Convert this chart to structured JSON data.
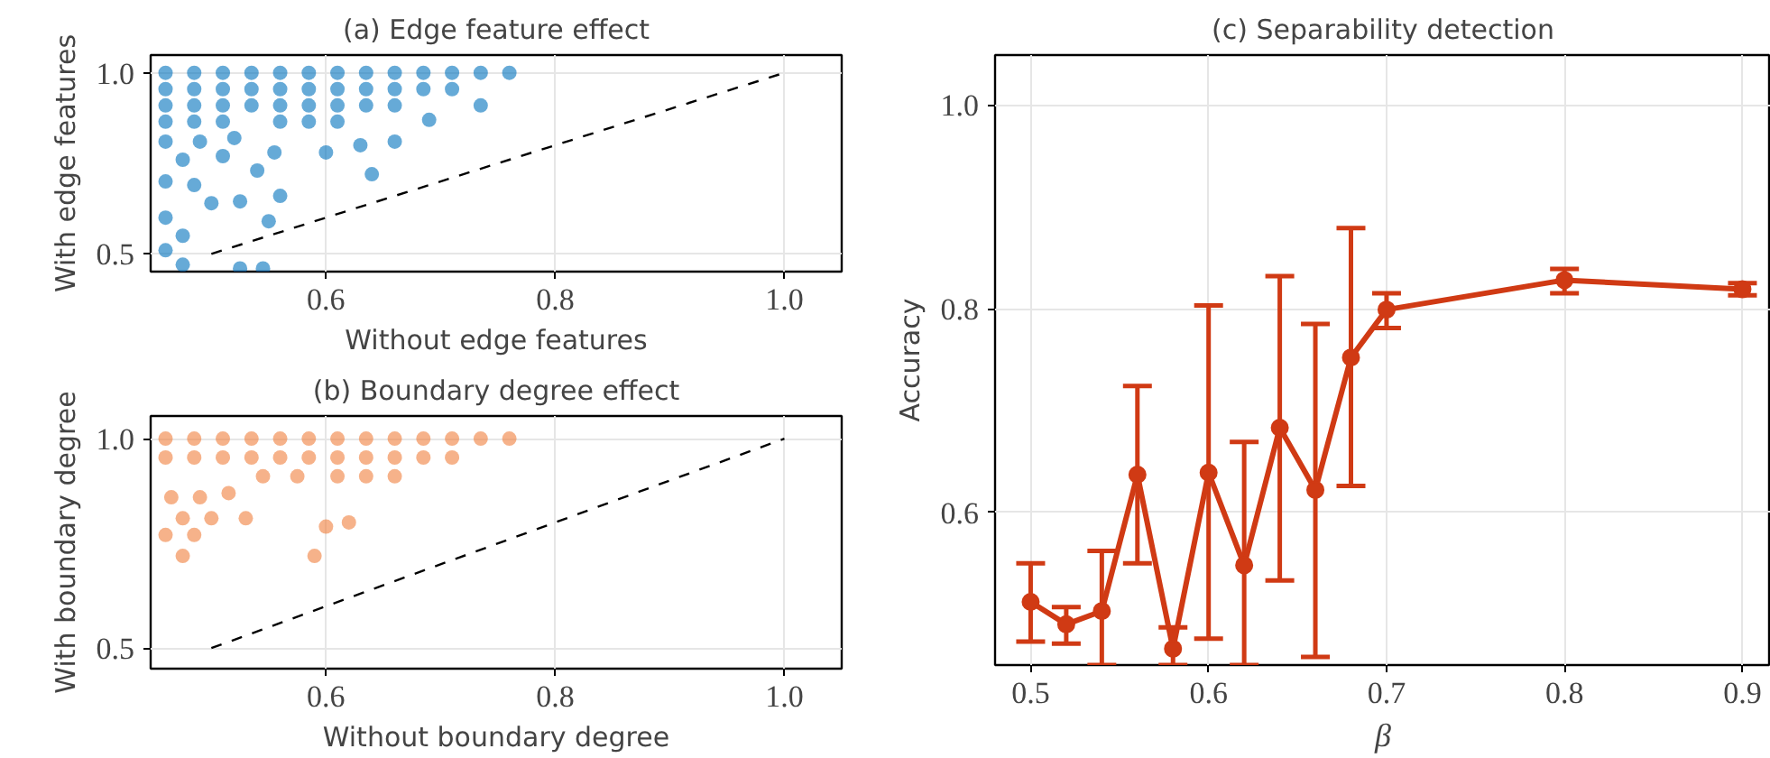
{
  "chart_data": [
    {
      "type": "scatter",
      "title": "(a) Edge feature effect",
      "xlabel": "Without edge features",
      "ylabel": "With edge features",
      "xlim": [
        0.447,
        1.05
      ],
      "ylim": [
        0.451,
        1.049
      ],
      "xticks": [
        {
          "value": 0.6,
          "label": "0.6"
        },
        {
          "value": 0.8,
          "label": "0.8"
        },
        {
          "value": 1.0,
          "label": "1.0"
        }
      ],
      "yticks": [
        {
          "value": 0.5,
          "label": "0.5"
        },
        {
          "value": 1.0,
          "label": "1.0"
        }
      ],
      "grid": true,
      "series": [
        {
          "type": "scatter",
          "marker": "circle",
          "color": "#0072bd",
          "x": [
            0.46,
            0.485,
            0.51,
            0.535,
            0.56,
            0.585,
            0.61,
            0.635,
            0.66,
            0.685,
            0.71,
            0.735,
            0.76,
            0.46,
            0.485,
            0.51,
            0.535,
            0.56,
            0.585,
            0.61,
            0.635,
            0.66,
            0.685,
            0.71,
            0.46,
            0.485,
            0.51,
            0.535,
            0.56,
            0.585,
            0.61,
            0.635,
            0.66,
            0.46,
            0.485,
            0.51,
            0.56,
            0.61,
            0.64,
            0.66,
            0.63,
            0.6,
            0.56,
            0.55,
            0.545,
            0.525,
            0.555,
            0.54,
            0.525,
            0.5,
            0.485,
            0.475,
            0.475,
            0.46,
            0.46,
            0.46,
            0.475,
            0.46,
            0.49,
            0.51,
            0.52,
            0.69,
            0.735,
            0.585
          ],
          "values": [
            1.0,
            1.0,
            1.0,
            1.0,
            1.0,
            1.0,
            1.0,
            1.0,
            1.0,
            1.0,
            1.0,
            1.0,
            1.0,
            0.955,
            0.955,
            0.955,
            0.955,
            0.955,
            0.955,
            0.955,
            0.955,
            0.955,
            0.955,
            0.955,
            0.91,
            0.91,
            0.91,
            0.91,
            0.91,
            0.91,
            0.91,
            0.91,
            0.91,
            0.865,
            0.865,
            0.865,
            0.865,
            0.865,
            0.72,
            0.81,
            0.8,
            0.78,
            0.66,
            0.59,
            0.46,
            0.46,
            0.78,
            0.73,
            0.645,
            0.64,
            0.69,
            0.55,
            0.47,
            0.51,
            0.6,
            0.7,
            0.76,
            0.81,
            0.81,
            0.77,
            0.82,
            0.87,
            0.91,
            0.865
          ]
        },
        {
          "type": "line",
          "color": "#000000",
          "line_style": "dashed",
          "x": [
            0.5,
            1.0
          ],
          "values": [
            0.5,
            1.0
          ]
        }
      ]
    },
    {
      "type": "scatter",
      "title": "(b) Boundary degree effect",
      "xlabel": "Without boundary degree",
      "ylabel": "With boundary degree",
      "xlim": [
        0.447,
        1.05
      ],
      "ylim": [
        0.451,
        1.054
      ],
      "xticks": [
        {
          "value": 0.6,
          "label": "0.6"
        },
        {
          "value": 0.8,
          "label": "0.8"
        },
        {
          "value": 1.0,
          "label": "1.0"
        }
      ],
      "yticks": [
        {
          "value": 0.5,
          "label": "0.5"
        },
        {
          "value": 1.0,
          "label": "1.0"
        }
      ],
      "grid": true,
      "series": [
        {
          "type": "scatter",
          "marker": "circle",
          "color": "#f07f3c",
          "x": [
            0.46,
            0.485,
            0.51,
            0.535,
            0.56,
            0.585,
            0.61,
            0.635,
            0.66,
            0.685,
            0.71,
            0.735,
            0.76,
            0.46,
            0.485,
            0.51,
            0.535,
            0.56,
            0.585,
            0.61,
            0.635,
            0.66,
            0.685,
            0.71,
            0.61,
            0.635,
            0.66,
            0.46,
            0.475,
            0.485,
            0.53,
            0.59,
            0.6,
            0.62,
            0.465,
            0.49,
            0.515,
            0.475,
            0.5,
            0.545,
            0.575
          ],
          "values": [
            1.0,
            1.0,
            1.0,
            1.0,
            1.0,
            1.0,
            1.0,
            1.0,
            1.0,
            1.0,
            1.0,
            1.0,
            1.0,
            0.955,
            0.955,
            0.955,
            0.955,
            0.955,
            0.955,
            0.955,
            0.955,
            0.955,
            0.955,
            0.955,
            0.91,
            0.91,
            0.91,
            0.77,
            0.72,
            0.77,
            0.81,
            0.72,
            0.79,
            0.8,
            0.86,
            0.86,
            0.87,
            0.81,
            0.81,
            0.91,
            0.91
          ]
        },
        {
          "type": "line",
          "color": "#000000",
          "line_style": "dashed",
          "x": [
            0.5,
            1.0
          ],
          "values": [
            0.5,
            1.0
          ]
        }
      ]
    },
    {
      "type": "line",
      "title": "(c) Separability detection",
      "xlabel": "β",
      "ylabel": "Accuracy",
      "xlim": [
        0.48,
        0.916
      ],
      "ylim": [
        0.45,
        1.049
      ],
      "xticks": [
        {
          "value": 0.5,
          "label": "0.5"
        },
        {
          "value": 0.6,
          "label": "0.6"
        },
        {
          "value": 0.7,
          "label": "0.7"
        },
        {
          "value": 0.8,
          "label": "0.8"
        },
        {
          "value": 0.9,
          "label": "0.9"
        }
      ],
      "yticks": [
        {
          "value": 0.6,
          "label": "0.6"
        },
        {
          "value": 0.8,
          "label": "0.8"
        },
        {
          "value": 1.0,
          "label": "1.0"
        }
      ],
      "grid": true,
      "marker": "circle",
      "x": [
        0.5,
        0.52,
        0.54,
        0.56,
        0.58,
        0.6,
        0.62,
        0.64,
        0.66,
        0.68,
        0.7,
        0.8,
        0.9
      ],
      "series": [
        {
          "color": "#d03a14",
          "values": [
            0.512,
            0.49,
            0.503,
            0.637,
            0.466,
            0.639,
            0.548,
            0.683,
            0.622,
            0.752,
            0.799,
            0.828,
            0.819
          ],
          "errors": [
            [
              0.473,
              0.55
            ],
            [
              0.471,
              0.507
            ],
            [
              0.45,
              0.562
            ],
            [
              0.55,
              0.724
            ],
            [
              0.45,
              0.487
            ],
            [
              0.476,
              0.803
            ],
            [
              0.45,
              0.669
            ],
            [
              0.533,
              0.832
            ],
            [
              0.458,
              0.785
            ],
            [
              0.626,
              0.879
            ],
            [
              0.781,
              0.815
            ],
            [
              0.815,
              0.839
            ],
            [
              0.813,
              0.825
            ]
          ]
        }
      ]
    }
  ]
}
